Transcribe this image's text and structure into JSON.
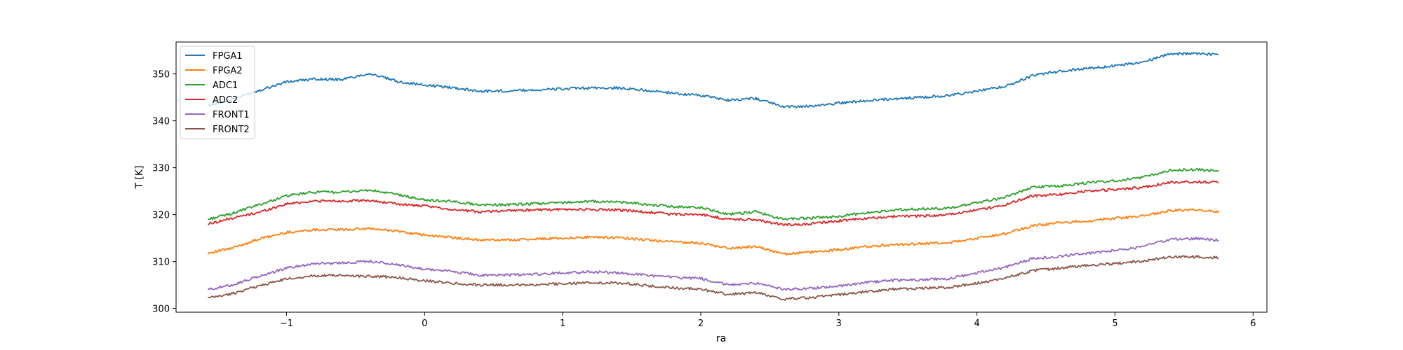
{
  "chart_data": {
    "type": "line",
    "title": "",
    "xlabel": "ra",
    "ylabel": "T [K]",
    "xlim": [
      -1.8,
      6.1
    ],
    "ylim": [
      299.2,
      356.8
    ],
    "xticks": [
      -1,
      0,
      1,
      2,
      3,
      4,
      5,
      6
    ],
    "xtick_labels": [
      "−1",
      "0",
      "1",
      "2",
      "3",
      "4",
      "5",
      "6"
    ],
    "yticks": [
      300,
      310,
      320,
      330,
      340,
      350
    ],
    "ytick_labels": [
      "300",
      "310",
      "320",
      "330",
      "340",
      "350"
    ],
    "grid": false,
    "legend": "upper-left",
    "x": [
      -1.57,
      -1.4,
      -1.2,
      -1.0,
      -0.8,
      -0.6,
      -0.4,
      -0.2,
      0.0,
      0.2,
      0.4,
      0.6,
      0.8,
      1.0,
      1.2,
      1.4,
      1.6,
      1.8,
      2.0,
      2.2,
      2.4,
      2.6,
      2.8,
      3.0,
      3.2,
      3.4,
      3.6,
      3.8,
      4.0,
      4.2,
      4.4,
      4.6,
      4.8,
      5.0,
      5.2,
      5.4,
      5.6,
      5.75
    ],
    "series": [
      {
        "name": "FPGA1",
        "color": "#1f77b4",
        "values": [
          343.2,
          344.5,
          346.5,
          348.3,
          348.9,
          348.8,
          350.1,
          348.4,
          347.6,
          347.1,
          346.3,
          346.4,
          346.6,
          346.8,
          347.0,
          347.0,
          346.5,
          345.9,
          345.4,
          344.4,
          344.8,
          343.0,
          343.1,
          343.8,
          344.3,
          344.7,
          345.0,
          345.4,
          346.3,
          347.3,
          349.6,
          350.6,
          351.2,
          351.7,
          352.5,
          354.3,
          354.3,
          354.1
        ]
      },
      {
        "name": "FPGA2",
        "color": "#ff7f0e",
        "values": [
          311.8,
          312.8,
          314.8,
          316.2,
          316.8,
          316.8,
          317.0,
          316.5,
          315.6,
          315.1,
          314.6,
          314.6,
          314.8,
          315.0,
          315.2,
          315.1,
          314.6,
          314.2,
          313.9,
          312.8,
          313.2,
          311.6,
          312.0,
          312.5,
          313.2,
          313.6,
          313.8,
          314.0,
          315.0,
          315.9,
          317.6,
          318.3,
          318.7,
          319.2,
          319.7,
          320.9,
          321.0,
          320.6
        ]
      },
      {
        "name": "ADC1",
        "color": "#2ca02c",
        "values": [
          319.0,
          320.2,
          322.1,
          324.0,
          324.8,
          324.8,
          325.2,
          324.3,
          323.1,
          322.8,
          322.1,
          322.1,
          322.3,
          322.6,
          322.8,
          322.7,
          322.2,
          321.7,
          321.5,
          320.1,
          320.6,
          319.0,
          319.3,
          319.6,
          320.4,
          321.0,
          321.2,
          321.3,
          322.6,
          323.6,
          325.9,
          326.1,
          326.8,
          327.2,
          327.9,
          329.5,
          329.6,
          329.2
        ]
      },
      {
        "name": "ADC2",
        "color": "#d62728",
        "values": [
          318.0,
          319.2,
          320.5,
          322.3,
          322.9,
          322.9,
          323.0,
          322.3,
          321.8,
          321.1,
          320.6,
          320.9,
          321.0,
          321.1,
          321.1,
          321.0,
          320.6,
          320.1,
          320.0,
          319.0,
          318.9,
          317.8,
          318.1,
          318.7,
          319.2,
          319.6,
          319.7,
          320.0,
          321.0,
          322.0,
          324.0,
          324.3,
          325.0,
          325.4,
          325.8,
          326.9,
          327.0,
          326.9
        ]
      },
      {
        "name": "FRONT1",
        "color": "#9467bd",
        "values": [
          304.0,
          305.0,
          306.8,
          308.6,
          309.6,
          309.7,
          310.1,
          309.3,
          308.4,
          307.9,
          307.1,
          307.1,
          307.3,
          307.6,
          307.8,
          307.6,
          307.1,
          306.6,
          306.4,
          305.0,
          305.4,
          304.0,
          304.3,
          304.8,
          305.5,
          306.0,
          306.1,
          306.4,
          307.6,
          308.7,
          310.6,
          311.1,
          311.8,
          312.4,
          313.1,
          314.8,
          314.9,
          314.5
        ]
      },
      {
        "name": "FRONT2",
        "color": "#8c564b",
        "values": [
          302.2,
          303.1,
          304.8,
          306.3,
          307.0,
          307.0,
          306.9,
          306.6,
          305.9,
          305.4,
          305.0,
          305.0,
          305.1,
          305.3,
          305.5,
          305.4,
          304.9,
          304.4,
          304.1,
          303.0,
          303.4,
          302.0,
          302.3,
          302.9,
          303.6,
          304.1,
          304.3,
          304.5,
          305.4,
          306.4,
          308.0,
          308.6,
          309.2,
          309.6,
          310.1,
          311.0,
          311.0,
          310.8
        ]
      }
    ]
  }
}
